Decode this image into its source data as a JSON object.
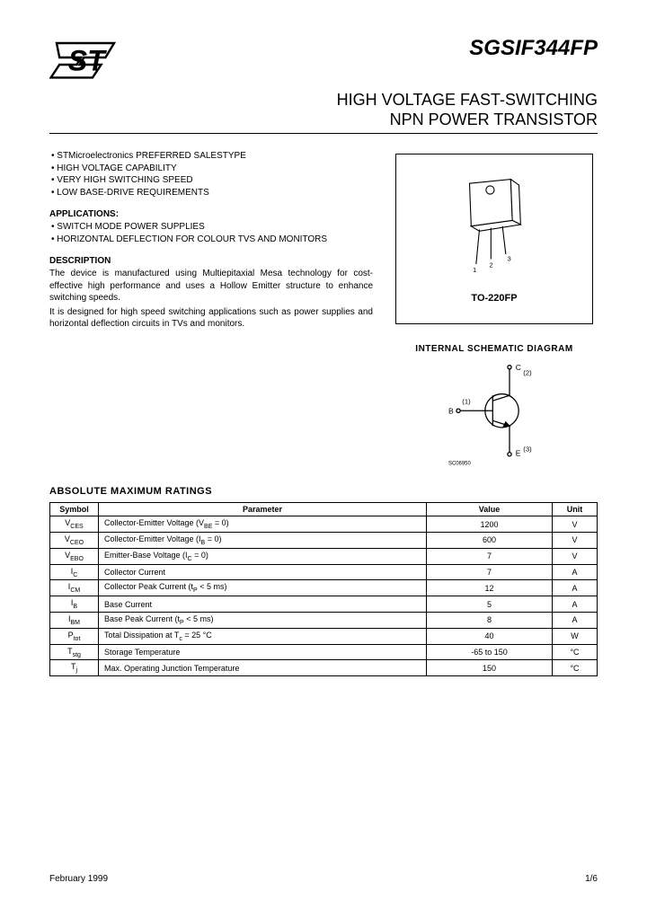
{
  "header": {
    "part_number": "SGSIF344FP",
    "title_line1": "HIGH VOLTAGE FAST-SWITCHING",
    "title_line2": "NPN POWER TRANSISTOR"
  },
  "features": [
    "STMicroelectronics PREFERRED SALESTYPE",
    "HIGH VOLTAGE CAPABILITY",
    "VERY HIGH SWITCHING SPEED",
    "LOW BASE-DRIVE REQUIREMENTS"
  ],
  "applications_head": "APPLICATIONS:",
  "applications": [
    "SWITCH MODE POWER SUPPLIES",
    "HORIZONTAL DEFLECTION FOR COLOUR TVS AND MONITORS"
  ],
  "description_head": "DESCRIPTION",
  "description": "The device is manufactured using Multiepitaxial Mesa technology for cost-effective high performance and uses a Hollow Emitter structure to enhance switching speeds.\nIt is designed for high speed switching applications such as power supplies and horizontal deflection circuits in TVs and monitors.",
  "package": {
    "label": "TO-220FP",
    "pins": [
      "1",
      "2",
      "3"
    ]
  },
  "schematic": {
    "title": "INTERNAL SCHEMATIC DIAGRAM",
    "labels": {
      "base": "B",
      "collector": "C",
      "emitter": "E",
      "pin1": "(1)",
      "pin2": "(2)",
      "pin3": "(3)"
    },
    "code": "SC06950"
  },
  "ratings": {
    "title": "ABSOLUTE MAXIMUM RATINGS",
    "columns": [
      "Symbol",
      "Parameter",
      "Value",
      "Unit"
    ],
    "rows": [
      {
        "sym": "V<sub>CES</sub>",
        "param": "Collector-Emitter Voltage (V<sub>BE</sub> = 0)",
        "val": "1200",
        "unit": "V"
      },
      {
        "sym": "V<sub>CEO</sub>",
        "param": "Collector-Emitter Voltage (I<sub>B</sub> = 0)",
        "val": "600",
        "unit": "V"
      },
      {
        "sym": "V<sub>EBO</sub>",
        "param": "Emitter-Base Voltage (I<sub>C</sub> = 0)",
        "val": "7",
        "unit": "V"
      },
      {
        "sym": "I<sub>C</sub>",
        "param": "Collector Current",
        "val": "7",
        "unit": "A"
      },
      {
        "sym": "I<sub>CM</sub>",
        "param": "Collector Peak Current (t<sub>P</sub> < 5 ms)",
        "val": "12",
        "unit": "A"
      },
      {
        "sym": "I<sub>B</sub>",
        "param": "Base Current",
        "val": "5",
        "unit": "A"
      },
      {
        "sym": "I<sub>BM</sub>",
        "param": "Base Peak Current (t<sub>P</sub> < 5 ms)",
        "val": "8",
        "unit": "A"
      },
      {
        "sym": "P<sub>tot</sub>",
        "param": "Total Dissipation at T<sub>c</sub> = 25 °C",
        "val": "40",
        "unit": "W"
      },
      {
        "sym": "T<sub>stg</sub>",
        "param": "Storage Temperature",
        "val": "-65 to 150",
        "unit": "°C"
      },
      {
        "sym": "T<sub>j</sub>",
        "param": "Max. Operating Junction Temperature",
        "val": "150",
        "unit": "°C"
      }
    ]
  },
  "footer": {
    "date": "February 1999",
    "page": "1/6"
  },
  "colors": {
    "text": "#000000",
    "bg": "#ffffff",
    "line": "#000000"
  }
}
